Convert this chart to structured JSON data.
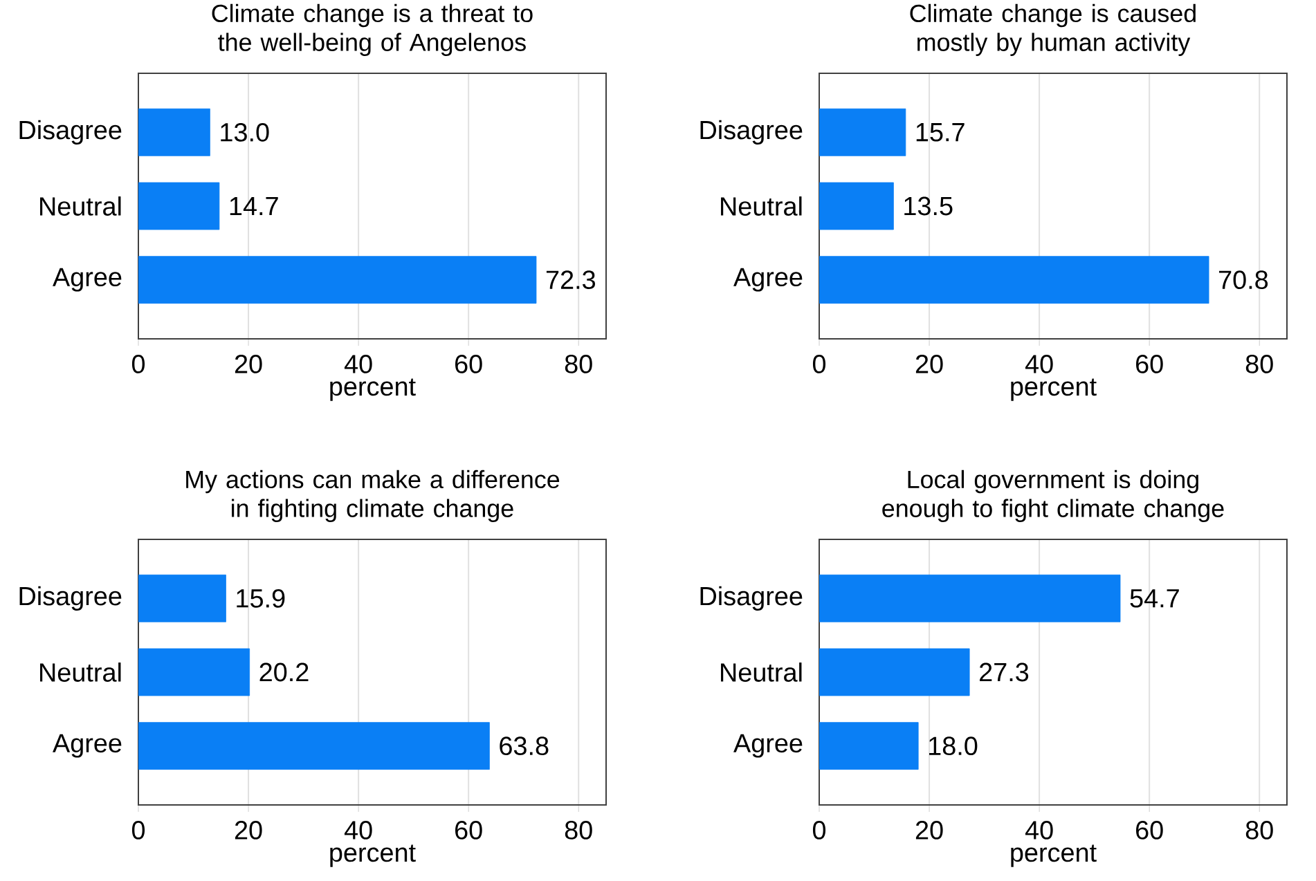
{
  "chart_data": [
    {
      "type": "bar",
      "orientation": "horizontal",
      "title": "Climate change is a threat to the well-being of Angelenos",
      "categories": [
        "Disagree",
        "Neutral",
        "Agree"
      ],
      "values": [
        13.0,
        14.7,
        72.3
      ],
      "value_labels": [
        "13.0",
        "14.7",
        "72.3"
      ],
      "color": "#0a7ff5",
      "xlim": [
        0,
        85
      ],
      "xticks": [
        0,
        20,
        40,
        60,
        80
      ],
      "xlabel": "percent",
      "grid": "x"
    },
    {
      "type": "bar",
      "orientation": "horizontal",
      "title": "Climate change is caused mostly by human activity",
      "categories": [
        "Disagree",
        "Neutral",
        "Agree"
      ],
      "values": [
        15.7,
        13.5,
        70.8
      ],
      "value_labels": [
        "15.7",
        "13.5",
        "70.8"
      ],
      "color": "#0a7ff5",
      "xlim": [
        0,
        85
      ],
      "xticks": [
        0,
        20,
        40,
        60,
        80
      ],
      "xlabel": "percent",
      "grid": "x"
    },
    {
      "type": "bar",
      "orientation": "horizontal",
      "title": "My actions can make a difference in fighting climate change",
      "categories": [
        "Disagree",
        "Neutral",
        "Agree"
      ],
      "values": [
        15.9,
        20.2,
        63.8
      ],
      "value_labels": [
        "15.9",
        "20.2",
        "63.8"
      ],
      "color": "#0a7ff5",
      "xlim": [
        0,
        85
      ],
      "xticks": [
        0,
        20,
        40,
        60,
        80
      ],
      "xlabel": "percent",
      "grid": "x"
    },
    {
      "type": "bar",
      "orientation": "horizontal",
      "title": "Local government is doing enough to fight climate change",
      "categories": [
        "Disagree",
        "Neutral",
        "Agree"
      ],
      "values": [
        54.7,
        27.3,
        18.0
      ],
      "value_labels": [
        "54.7",
        "27.3",
        "18.0"
      ],
      "color": "#0a7ff5",
      "xlim": [
        0,
        85
      ],
      "xticks": [
        0,
        20,
        40,
        60,
        80
      ],
      "xlabel": "percent",
      "grid": "x"
    }
  ]
}
